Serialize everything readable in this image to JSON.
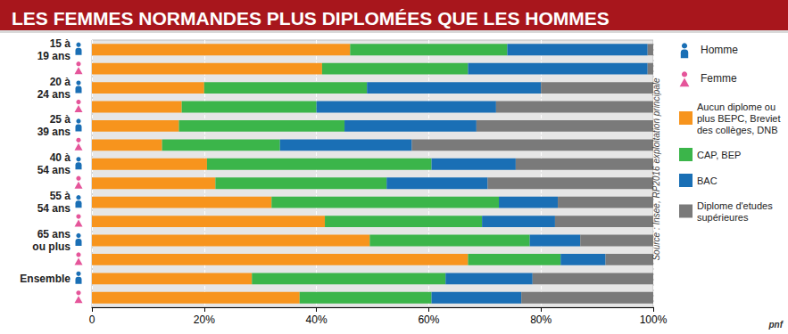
{
  "chart_data": {
    "type": "bar",
    "title": "LES FEMMES NORMANDES PLUS DIPLOMÉES QUE LES HOMMES",
    "source": "Source : Insee, RP2016 exploitation principale",
    "credit": "pnf",
    "orientation": "horizontal",
    "stacked": true,
    "grid": true,
    "legend": "right",
    "categories": [
      "15 à\n19 ans",
      null,
      "20 à\n24 ans",
      null,
      "25 à\n39 ans",
      null,
      "40 à\n54 ans",
      null,
      "55 à\n54 ans",
      null,
      "65 ans\nou plus",
      null,
      "Ensemble",
      null
    ],
    "row_sex": [
      "Homme",
      "Femme",
      "Homme",
      "Femme",
      "Homme",
      "Femme",
      "Homme",
      "Femme",
      "Homme",
      "Femme",
      "Homme",
      "Femme",
      "Homme",
      "Femme"
    ],
    "sex_legend": [
      {
        "name": "Homme",
        "color": "#1a6fb5"
      },
      {
        "name": "Femme",
        "color": "#e5559a"
      }
    ],
    "series": [
      {
        "name": "Aucun diplome ou\nplus BEPC, Breviet\ndes collèges, DNB",
        "color": "#f7941d",
        "values": [
          46,
          41,
          20,
          16,
          15.5,
          12.5,
          20.5,
          22,
          32,
          41.5,
          49.5,
          67,
          28.5,
          37
        ]
      },
      {
        "name": "CAP, BEP",
        "color": "#3bb54a",
        "values": [
          28,
          26,
          29,
          24,
          29.5,
          21,
          40,
          30.5,
          40.5,
          28,
          28.5,
          16.5,
          34.5,
          23.5
        ]
      },
      {
        "name": "BAC",
        "color": "#1a6fb5",
        "values": [
          25,
          32,
          31,
          32,
          23.5,
          23.5,
          15,
          18,
          10.5,
          13,
          9,
          8,
          15.5,
          16
        ]
      },
      {
        "name": "Diplome d'etudes\nsupérieures",
        "color": "#7a7a7a",
        "values": [
          1,
          1,
          20,
          28,
          31.5,
          43,
          24.5,
          29.5,
          17,
          17.5,
          13,
          8.5,
          21.5,
          23.5
        ]
      }
    ],
    "xlim": [
      0,
      100
    ],
    "xticks": [
      0,
      {
        "value": 20,
        "label": "20%"
      },
      {
        "value": 40,
        "label": "40%"
      },
      {
        "value": 60,
        "label": "60%"
      },
      {
        "value": 80,
        "label": "80%"
      },
      {
        "value": 100,
        "label": "100%"
      }
    ]
  }
}
